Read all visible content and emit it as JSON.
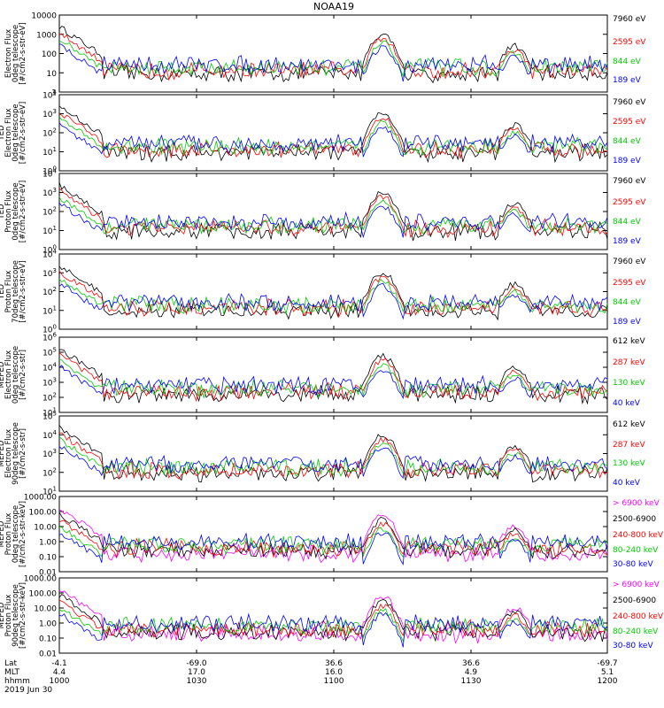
{
  "title": "NOAA19",
  "chart_data": [
    {
      "type": "line",
      "ylabel": [
        "Electron Flux",
        "0deg telescope",
        "[#/cm2-s-str-eV]"
      ],
      "yscale": "log",
      "ticks": [
        {
          "label": "10000",
          "exp": 4
        },
        {
          "label": "1000",
          "exp": 3
        },
        {
          "label": "100",
          "exp": 2
        },
        {
          "label": "10",
          "exp": 1
        },
        {
          "label": "1",
          "exp": 0
        }
      ],
      "ylim_exp": [
        0,
        4
      ],
      "series": [
        {
          "name": "7960 eV",
          "color": "#000000"
        },
        {
          "name": "2595 eV",
          "color": "#ff0000"
        },
        {
          "name": "844 eV",
          "color": "#00cc00"
        },
        {
          "name": "189 eV",
          "color": "#0000ff"
        }
      ]
    },
    {
      "type": "line",
      "ylabel": [
        "TED",
        "Electron Flux",
        "0deg telescope",
        "[#/cm2-s-str-eV]"
      ],
      "yscale": "log",
      "ticks": [
        {
          "base": "10",
          "sup": "4",
          "exp": 4
        },
        {
          "base": "10",
          "sup": "3",
          "exp": 3
        },
        {
          "base": "10",
          "sup": "2",
          "exp": 2
        },
        {
          "base": "10",
          "sup": "1",
          "exp": 1
        },
        {
          "base": "10",
          "sup": "0",
          "exp": 0
        }
      ],
      "ylim_exp": [
        0,
        4
      ],
      "series": [
        {
          "name": "7960 eV",
          "color": "#000000"
        },
        {
          "name": "2595 eV",
          "color": "#ff0000"
        },
        {
          "name": "844 eV",
          "color": "#00cc00"
        },
        {
          "name": "189 eV",
          "color": "#0000ff"
        }
      ]
    },
    {
      "type": "line",
      "ylabel": [
        "TED",
        "Proton Flux",
        "0deg telescope",
        "[#/cm2-s-str-eV]"
      ],
      "yscale": "log",
      "ticks": [
        {
          "base": "10",
          "sup": "4",
          "exp": 4
        },
        {
          "base": "10",
          "sup": "3",
          "exp": 3
        },
        {
          "base": "10",
          "sup": "2",
          "exp": 2
        },
        {
          "base": "10",
          "sup": "1",
          "exp": 1
        },
        {
          "base": "10",
          "sup": "0",
          "exp": 0
        }
      ],
      "ylim_exp": [
        0,
        4
      ],
      "series": [
        {
          "name": "7960 eV",
          "color": "#000000"
        },
        {
          "name": "2595 eV",
          "color": "#ff0000"
        },
        {
          "name": "844 eV",
          "color": "#00cc00"
        },
        {
          "name": "189 eV",
          "color": "#0000ff"
        }
      ]
    },
    {
      "type": "line",
      "ylabel": [
        "TED",
        "Proton Flux",
        "70deg telescope",
        "[#/cm2-s-str-eV]"
      ],
      "yscale": "log",
      "ticks": [
        {
          "base": "10",
          "sup": "4",
          "exp": 4
        },
        {
          "base": "10",
          "sup": "3",
          "exp": 3
        },
        {
          "base": "10",
          "sup": "2",
          "exp": 2
        },
        {
          "base": "10",
          "sup": "1",
          "exp": 1
        },
        {
          "base": "10",
          "sup": "0",
          "exp": 0
        }
      ],
      "ylim_exp": [
        0,
        4
      ],
      "series": [
        {
          "name": "7960 eV",
          "color": "#000000"
        },
        {
          "name": "2595 eV",
          "color": "#ff0000"
        },
        {
          "name": "844 eV",
          "color": "#00cc00"
        },
        {
          "name": "189 eV",
          "color": "#0000ff"
        }
      ]
    },
    {
      "type": "line",
      "ylabel": [
        "MEPED",
        "Electron Flux",
        "0deg telescope",
        "[#/cm2-s-str]"
      ],
      "yscale": "log",
      "ticks": [
        {
          "base": "10",
          "sup": "6",
          "exp": 6
        },
        {
          "base": "10",
          "sup": "5",
          "exp": 5
        },
        {
          "base": "10",
          "sup": "4",
          "exp": 4
        },
        {
          "base": "10",
          "sup": "3",
          "exp": 3
        },
        {
          "base": "10",
          "sup": "2",
          "exp": 2
        },
        {
          "base": "10",
          "sup": "1",
          "exp": 1
        }
      ],
      "ylim_exp": [
        1,
        6
      ],
      "series": [
        {
          "name": "612 keV",
          "color": "#000000"
        },
        {
          "name": "287 keV",
          "color": "#ff0000"
        },
        {
          "name": "130 keV",
          "color": "#00cc00"
        },
        {
          "name": "40 keV",
          "color": "#0000ff"
        }
      ]
    },
    {
      "type": "line",
      "ylabel": [
        "MEPED",
        "Electron Flux",
        "90deg telescope",
        "[#/cm2-s-str]"
      ],
      "yscale": "log",
      "ticks": [
        {
          "base": "10",
          "sup": "5",
          "exp": 5
        },
        {
          "base": "10",
          "sup": "4",
          "exp": 4
        },
        {
          "base": "10",
          "sup": "3",
          "exp": 3
        },
        {
          "base": "10",
          "sup": "2",
          "exp": 2
        },
        {
          "base": "10",
          "sup": "1",
          "exp": 1
        }
      ],
      "ylim_exp": [
        1,
        5
      ],
      "series": [
        {
          "name": "612 keV",
          "color": "#000000"
        },
        {
          "name": "287 keV",
          "color": "#ff0000"
        },
        {
          "name": "130 keV",
          "color": "#00cc00"
        },
        {
          "name": "40 keV",
          "color": "#0000ff"
        }
      ]
    },
    {
      "type": "line",
      "ylabel": [
        "MEPED",
        "Proton Flux",
        "0deg telescope",
        "[#/cm2-s-str-keV]"
      ],
      "yscale": "log",
      "ticks": [
        {
          "label": "1000.00",
          "exp": 3
        },
        {
          "label": "100.00",
          "exp": 2
        },
        {
          "label": "10.00",
          "exp": 1
        },
        {
          "label": "1.00",
          "exp": 0
        },
        {
          "label": "0.10",
          "exp": -1
        },
        {
          "label": "0.01",
          "exp": -2
        }
      ],
      "ylim_exp": [
        -2,
        3
      ],
      "series": [
        {
          "name": "> 6900 keV",
          "color": "#ff00ff"
        },
        {
          "name": "2500-6900",
          "color": "#000000"
        },
        {
          "name": "240-800 keV",
          "color": "#ff0000"
        },
        {
          "name": "80-240 keV",
          "color": "#00cc00"
        },
        {
          "name": "30-80 keV",
          "color": "#0000ff"
        }
      ]
    },
    {
      "type": "line",
      "ylabel": [
        "MEPED",
        "Proton Flux",
        "90deg telescope",
        "[#/cm2-s-str-keV]"
      ],
      "yscale": "log",
      "ticks": [
        {
          "label": "1000.00",
          "exp": 3
        },
        {
          "label": "100.00",
          "exp": 2
        },
        {
          "label": "10.00",
          "exp": 1
        },
        {
          "label": "1.00",
          "exp": 0
        },
        {
          "label": "0.10",
          "exp": -1
        },
        {
          "label": "0.01",
          "exp": -2
        }
      ],
      "ylim_exp": [
        -2,
        3
      ],
      "series": [
        {
          "name": "> 6900 keV",
          "color": "#ff00ff"
        },
        {
          "name": "2500-6900",
          "color": "#000000"
        },
        {
          "name": "240-800 keV",
          "color": "#ff0000"
        },
        {
          "name": "80-240 keV",
          "color": "#00cc00"
        },
        {
          "name": "30-80 keV",
          "color": "#0000ff"
        }
      ]
    }
  ],
  "xaxis": {
    "row_labels": [
      "Lat",
      "MLT",
      "hhmm"
    ],
    "date": "2019 Jun 30",
    "ticks": [
      {
        "lat": "-4.1",
        "mlt": "4.4",
        "hhmm": "1000"
      },
      {
        "lat": "-69.0",
        "mlt": "17.0",
        "hhmm": "1030"
      },
      {
        "lat": "36.6",
        "mlt": "16.0",
        "hhmm": "1100"
      },
      {
        "lat": "36.6",
        "mlt": "4.9",
        "hhmm": "1130"
      },
      {
        "lat": "-69.7",
        "mlt": "5.1",
        "hhmm": "1200"
      }
    ]
  }
}
